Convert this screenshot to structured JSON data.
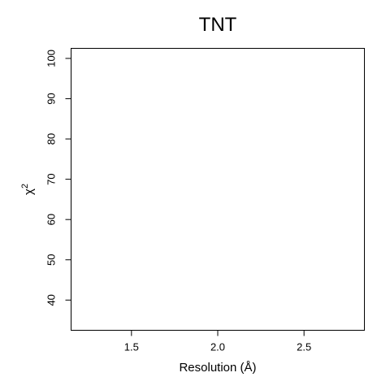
{
  "chart_data": {
    "type": "scatter",
    "title": "TNT",
    "xlabel": "Resolution (Å)",
    "ylabel_base": "χ",
    "ylabel_superscript": "2",
    "xlim": [
      1.15,
      2.85
    ],
    "ylim": [
      32.5,
      102.5
    ],
    "xticks": [
      1.5,
      2.0,
      2.5
    ],
    "xtick_labels": [
      "1.5",
      "2.0",
      "2.5"
    ],
    "yticks": [
      40,
      50,
      60,
      70,
      80,
      90,
      100
    ],
    "ytick_labels": [
      "40",
      "50",
      "60",
      "70",
      "80",
      "90",
      "100"
    ],
    "grid": false,
    "series": []
  }
}
